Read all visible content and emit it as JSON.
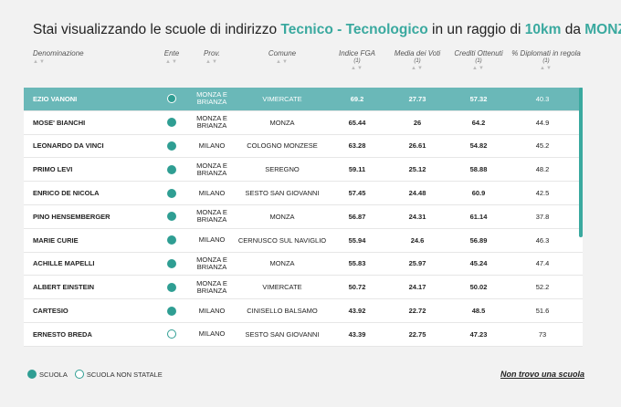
{
  "title": {
    "prefix": "Stai visualizzando le scuole di indirizzo",
    "indirizzo": "Tecnico - Tecnologico",
    "mid": "in un raggio di",
    "raggio": "10km",
    "da": "da",
    "citta": "MONZA"
  },
  "columns": {
    "denominazione": "Denominazione",
    "ente": "Ente",
    "prov": "Prov.",
    "comune": "Comune",
    "fga": "Indice FGA",
    "fga_note": "(1)",
    "media": "Media dei Voti",
    "media_note": "(1)",
    "crediti": "Crediti Ottenuti",
    "crediti_note": "(1)",
    "diplomati": "% Diplomati in regola",
    "diplomati_note": "(1)",
    "sort_arrows": "▲▼"
  },
  "rows": [
    {
      "name": "EZIO VANONI",
      "ente": "scuola",
      "prov": "MONZA E BRIANZA",
      "comune": "VIMERCATE",
      "fga": "69.2",
      "media": "27.73",
      "crediti": "57.32",
      "diplomati": "40.3"
    },
    {
      "name": "MOSE' BIANCHI",
      "ente": "scuola",
      "prov": "MONZA E BRIANZA",
      "comune": "MONZA",
      "fga": "65.44",
      "media": "26",
      "crediti": "64.2",
      "diplomati": "44.9"
    },
    {
      "name": "LEONARDO DA VINCI",
      "ente": "scuola",
      "prov": "MILANO",
      "comune": "COLOGNO MONZESE",
      "fga": "63.28",
      "media": "26.61",
      "crediti": "54.82",
      "diplomati": "45.2"
    },
    {
      "name": "PRIMO LEVI",
      "ente": "scuola",
      "prov": "MONZA E BRIANZA",
      "comune": "SEREGNO",
      "fga": "59.11",
      "media": "25.12",
      "crediti": "58.88",
      "diplomati": "48.2"
    },
    {
      "name": "ENRICO DE NICOLA",
      "ente": "scuola",
      "prov": "MILANO",
      "comune": "SESTO SAN GIOVANNI",
      "fga": "57.45",
      "media": "24.48",
      "crediti": "60.9",
      "diplomati": "42.5"
    },
    {
      "name": "PINO HENSEMBERGER",
      "ente": "scuola",
      "prov": "MONZA E BRIANZA",
      "comune": "MONZA",
      "fga": "56.87",
      "media": "24.31",
      "crediti": "61.14",
      "diplomati": "37.8"
    },
    {
      "name": "MARIE CURIE",
      "ente": "scuola",
      "prov": "MILANO",
      "comune": "CERNUSCO SUL NAVIGLIO",
      "fga": "55.94",
      "media": "24.6",
      "crediti": "56.89",
      "diplomati": "46.3"
    },
    {
      "name": "ACHILLE MAPELLI",
      "ente": "scuola",
      "prov": "MONZA E BRIANZA",
      "comune": "MONZA",
      "fga": "55.83",
      "media": "25.97",
      "crediti": "45.24",
      "diplomati": "47.4"
    },
    {
      "name": "ALBERT EINSTEIN",
      "ente": "scuola",
      "prov": "MONZA E BRIANZA",
      "comune": "VIMERCATE",
      "fga": "50.72",
      "media": "24.17",
      "crediti": "50.02",
      "diplomati": "52.2"
    },
    {
      "name": "CARTESIO",
      "ente": "scuola",
      "prov": "MILANO",
      "comune": "CINISELLO BALSAMO",
      "fga": "43.92",
      "media": "22.72",
      "crediti": "48.5",
      "diplomati": "51.6"
    },
    {
      "name": "ERNESTO BREDA",
      "ente": "scuola non statale",
      "prov": "MILANO",
      "comune": "SESTO SAN GIOVANNI",
      "fga": "43.39",
      "media": "22.75",
      "crediti": "47.23",
      "diplomati": "73"
    }
  ],
  "selected_row": 0,
  "legend": {
    "scuola": "SCUOLA",
    "non_statale": "SCUOLA NON STATALE"
  },
  "link_no_school": "Non trovo una scuola",
  "colors": {
    "accent": "#3aa99f",
    "selected_row": "#6ab8b8",
    "dot": "#2f9e93"
  },
  "icons": {
    "scuola": "filled-circle-icon",
    "non_statale": "hollow-circle-icon",
    "sort": "sort-arrows-icon"
  }
}
